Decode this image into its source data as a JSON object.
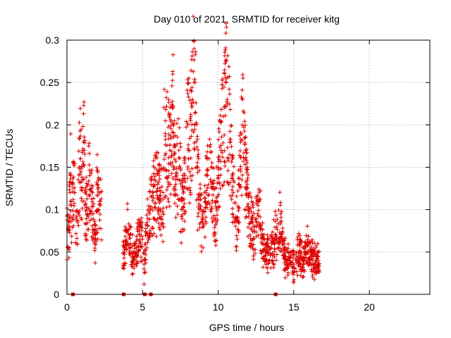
{
  "chart_data": {
    "type": "scatter",
    "title": "Day 010 of 2021, SRMTID for receiver kitg",
    "xlabel": "GPS time / hours",
    "ylabel": "SRMTID / TECUs",
    "xlim": [
      0,
      24
    ],
    "ylim": [
      0,
      0.3
    ],
    "x_ticks": [
      0,
      5,
      10,
      15,
      20
    ],
    "x_tick_labels": [
      "0",
      "5",
      "10",
      "15",
      "20"
    ],
    "y_ticks": [
      0,
      0.05,
      0.1,
      0.15,
      0.2,
      0.25,
      0.3
    ],
    "y_tick_labels": [
      "0",
      "0.05",
      "0.1",
      "0.15",
      "0.2",
      "0.25",
      "0.3"
    ],
    "grid": true,
    "marker": "+",
    "color": "#dd0000",
    "series": [
      {
        "name": "SRMTID",
        "segments": [
          {
            "x_start": 0.0,
            "x_end": 2.3,
            "points": [
              [
                0.1,
                0.075
              ],
              [
                0.15,
                0.09
              ],
              [
                0.2,
                0.12
              ],
              [
                0.25,
                0.14
              ],
              [
                0.3,
                0.105
              ],
              [
                0.4,
                0.13
              ],
              [
                0.5,
                0.12
              ],
              [
                0.6,
                0.09
              ],
              [
                0.7,
                0.085
              ],
              [
                0.8,
                0.15
              ],
              [
                0.9,
                0.16
              ],
              [
                1.0,
                0.11
              ],
              [
                1.1,
                0.18
              ],
              [
                1.15,
                0.17
              ],
              [
                1.2,
                0.12
              ],
              [
                1.3,
                0.1
              ],
              [
                1.4,
                0.13
              ],
              [
                1.5,
                0.14
              ],
              [
                1.6,
                0.095
              ],
              [
                1.7,
                0.12
              ],
              [
                1.8,
                0.07
              ],
              [
                1.9,
                0.065
              ],
              [
                2.0,
                0.13
              ],
              [
                2.1,
                0.1
              ],
              [
                2.2,
                0.105
              ]
            ]
          },
          {
            "x_start": 3.7,
            "x_end": 6.4,
            "points": [
              [
                3.8,
                0.05
              ],
              [
                4.0,
                0.075
              ],
              [
                4.2,
                0.06
              ],
              [
                4.4,
                0.04
              ],
              [
                4.6,
                0.055
              ],
              [
                4.8,
                0.07
              ],
              [
                5.0,
                0.065
              ],
              [
                5.1,
                0.03
              ],
              [
                5.3,
                0.085
              ],
              [
                5.5,
                0.1
              ],
              [
                5.7,
                0.12
              ],
              [
                6.0,
                0.13
              ],
              [
                6.2,
                0.11
              ]
            ]
          },
          {
            "x_start": 6.4,
            "x_end": 9.5,
            "points": [
              [
                6.5,
                0.19
              ],
              [
                6.8,
                0.17
              ],
              [
                7.0,
                0.22
              ],
              [
                7.2,
                0.13
              ],
              [
                7.4,
                0.17
              ],
              [
                7.6,
                0.1
              ],
              [
                7.8,
                0.14
              ],
              [
                8.0,
                0.2
              ],
              [
                8.1,
                0.17
              ],
              [
                8.3,
                0.23
              ],
              [
                8.4,
                0.25
              ],
              [
                8.5,
                0.215
              ],
              [
                8.6,
                0.15
              ],
              [
                8.8,
                0.1
              ],
              [
                9.0,
                0.08
              ],
              [
                9.2,
                0.12
              ],
              [
                9.4,
                0.16
              ]
            ]
          },
          {
            "x_start": 9.5,
            "x_end": 12.8,
            "points": [
              [
                9.6,
                0.13
              ],
              [
                9.8,
                0.09
              ],
              [
                10.0,
                0.14
              ],
              [
                10.2,
                0.17
              ],
              [
                10.4,
                0.22
              ],
              [
                10.5,
                0.25
              ],
              [
                10.6,
                0.23
              ],
              [
                10.8,
                0.18
              ],
              [
                11.0,
                0.12
              ],
              [
                11.2,
                0.09
              ],
              [
                11.4,
                0.13
              ],
              [
                11.6,
                0.2
              ],
              [
                11.8,
                0.16
              ],
              [
                12.0,
                0.1
              ],
              [
                12.2,
                0.085
              ],
              [
                12.4,
                0.075
              ],
              [
                12.6,
                0.095
              ]
            ]
          },
          {
            "x_start": 12.8,
            "x_end": 16.7,
            "points": [
              [
                12.9,
                0.06
              ],
              [
                13.2,
                0.05
              ],
              [
                13.5,
                0.055
              ],
              [
                13.8,
                0.07
              ],
              [
                14.1,
                0.085
              ],
              [
                14.4,
                0.045
              ],
              [
                14.7,
                0.04
              ],
              [
                15.0,
                0.035
              ],
              [
                15.3,
                0.05
              ],
              [
                15.6,
                0.04
              ],
              [
                15.9,
                0.06
              ],
              [
                16.2,
                0.045
              ],
              [
                16.5,
                0.04
              ]
            ]
          }
        ]
      }
    ],
    "zero_markers_x": [
      0.4,
      3.75,
      5.15,
      5.55,
      13.8
    ],
    "grid_color": "#a0a0a0",
    "axis_color": "#000000"
  }
}
